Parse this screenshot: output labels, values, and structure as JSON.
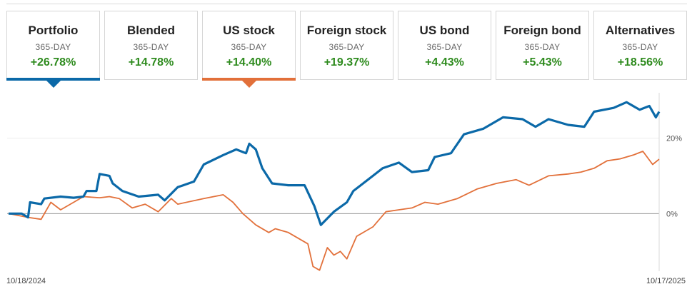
{
  "tabs": [
    {
      "name": "Portfolio",
      "period": "365-DAY",
      "value": "+26.78%",
      "active": true,
      "accent": "#0b69a8"
    },
    {
      "name": "Blended",
      "period": "365-DAY",
      "value": "+14.78%",
      "active": false,
      "accent": ""
    },
    {
      "name": "US stock",
      "period": "365-DAY",
      "value": "+14.40%",
      "active": true,
      "accent": "#e2703a"
    },
    {
      "name": "Foreign stock",
      "period": "365-DAY",
      "value": "+19.37%",
      "active": false,
      "accent": ""
    },
    {
      "name": "US bond",
      "period": "365-DAY",
      "value": "+4.43%",
      "active": false,
      "accent": ""
    },
    {
      "name": "Foreign bond",
      "period": "365-DAY",
      "value": "+5.43%",
      "active": false,
      "accent": ""
    },
    {
      "name": "Alternatives",
      "period": "365-DAY",
      "value": "+18.56%",
      "active": false,
      "accent": ""
    }
  ],
  "colors": {
    "positive": "#2e8b1e",
    "portfolio": "#0b69a8",
    "us_stock": "#e2703a"
  },
  "chart_data": {
    "type": "line",
    "x_start": "10/18/2024",
    "x_end": "10/17/2025",
    "x_labels": [
      "10/18/2024",
      "10/17/2025"
    ],
    "y_ticks": [
      "20%",
      "0%"
    ],
    "y_tick_values": [
      20,
      0
    ],
    "ylim": [
      -16,
      32
    ],
    "grid": true,
    "series": [
      {
        "name": "Portfolio",
        "color": "#0b69a8",
        "values": [
          [
            0,
            0
          ],
          [
            0.02,
            0
          ],
          [
            0.03,
            -1
          ],
          [
            0.033,
            3
          ],
          [
            0.05,
            2.5
          ],
          [
            0.055,
            4
          ],
          [
            0.08,
            4.5
          ],
          [
            0.1,
            4.2
          ],
          [
            0.115,
            4.5
          ],
          [
            0.12,
            6
          ],
          [
            0.135,
            6
          ],
          [
            0.14,
            10.5
          ],
          [
            0.155,
            10
          ],
          [
            0.16,
            8
          ],
          [
            0.175,
            6
          ],
          [
            0.2,
            4.5
          ],
          [
            0.23,
            5
          ],
          [
            0.24,
            3.5
          ],
          [
            0.26,
            7
          ],
          [
            0.285,
            8.5
          ],
          [
            0.3,
            13
          ],
          [
            0.33,
            15.5
          ],
          [
            0.35,
            17
          ],
          [
            0.365,
            16
          ],
          [
            0.37,
            18.5
          ],
          [
            0.38,
            17
          ],
          [
            0.39,
            12
          ],
          [
            0.405,
            8
          ],
          [
            0.43,
            7.5
          ],
          [
            0.455,
            7.5
          ],
          [
            0.47,
            2
          ],
          [
            0.48,
            -3
          ],
          [
            0.5,
            0.5
          ],
          [
            0.52,
            3
          ],
          [
            0.53,
            6
          ],
          [
            0.56,
            10
          ],
          [
            0.575,
            12
          ],
          [
            0.6,
            13.5
          ],
          [
            0.62,
            11
          ],
          [
            0.645,
            11.5
          ],
          [
            0.655,
            15
          ],
          [
            0.68,
            16
          ],
          [
            0.7,
            21
          ],
          [
            0.73,
            22.5
          ],
          [
            0.76,
            25.5
          ],
          [
            0.79,
            25
          ],
          [
            0.81,
            23
          ],
          [
            0.83,
            25
          ],
          [
            0.86,
            23.5
          ],
          [
            0.885,
            23
          ],
          [
            0.9,
            27
          ],
          [
            0.93,
            28
          ],
          [
            0.95,
            29.5
          ],
          [
            0.97,
            27.5
          ],
          [
            0.985,
            28.5
          ],
          [
            0.995,
            25.5
          ],
          [
            1,
            27
          ]
        ]
      },
      {
        "name": "US stock",
        "color": "#e2703a",
        "values": [
          [
            0,
            0
          ],
          [
            0.03,
            -1
          ],
          [
            0.05,
            -1.5
          ],
          [
            0.065,
            3
          ],
          [
            0.08,
            1
          ],
          [
            0.1,
            3
          ],
          [
            0.115,
            4.5
          ],
          [
            0.14,
            4.2
          ],
          [
            0.155,
            4.5
          ],
          [
            0.17,
            4
          ],
          [
            0.19,
            1.5
          ],
          [
            0.21,
            2.5
          ],
          [
            0.23,
            0.5
          ],
          [
            0.25,
            4
          ],
          [
            0.26,
            2.5
          ],
          [
            0.3,
            4
          ],
          [
            0.33,
            5
          ],
          [
            0.345,
            3
          ],
          [
            0.36,
            0
          ],
          [
            0.38,
            -3
          ],
          [
            0.4,
            -5
          ],
          [
            0.41,
            -4
          ],
          [
            0.43,
            -5
          ],
          [
            0.46,
            -8
          ],
          [
            0.468,
            -14
          ],
          [
            0.478,
            -15
          ],
          [
            0.49,
            -9
          ],
          [
            0.5,
            -11
          ],
          [
            0.51,
            -10
          ],
          [
            0.52,
            -12
          ],
          [
            0.535,
            -6
          ],
          [
            0.56,
            -3.5
          ],
          [
            0.58,
            0.5
          ],
          [
            0.6,
            1
          ],
          [
            0.62,
            1.5
          ],
          [
            0.64,
            3
          ],
          [
            0.66,
            2.5
          ],
          [
            0.69,
            4
          ],
          [
            0.72,
            6.5
          ],
          [
            0.75,
            8
          ],
          [
            0.78,
            9
          ],
          [
            0.8,
            7.5
          ],
          [
            0.83,
            10
          ],
          [
            0.86,
            10.5
          ],
          [
            0.88,
            11
          ],
          [
            0.9,
            12
          ],
          [
            0.92,
            14
          ],
          [
            0.94,
            14.5
          ],
          [
            0.96,
            15.5
          ],
          [
            0.975,
            16.5
          ],
          [
            0.99,
            13
          ],
          [
            1,
            14.4
          ]
        ]
      }
    ]
  }
}
